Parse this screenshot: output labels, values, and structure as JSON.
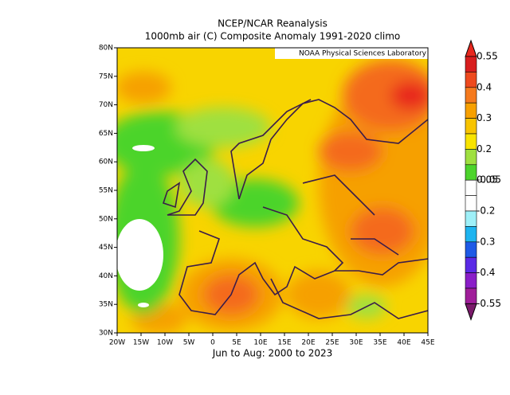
{
  "header": {
    "title": "NCEP/NCAR Reanalysis",
    "subtitle": "1000mb air (C) Composite Anomaly 1991-2020 climo",
    "attribution": "NOAA Physical Sciences Laboratory",
    "footer": "Jun to Aug: 2000 to 2023"
  },
  "map": {
    "lon_labels": [
      "20W",
      "15W",
      "10W",
      "5W",
      "0",
      "5E",
      "10E",
      "15E",
      "20E",
      "25E",
      "30E",
      "35E",
      "40E",
      "45E"
    ],
    "lat_labels": [
      "80N",
      "75N",
      "70N",
      "65N",
      "60N",
      "55N",
      "50N",
      "45N",
      "40N",
      "35N",
      "30N"
    ]
  },
  "colorbar": {
    "labels": [
      "0.55",
      "0.4",
      "0.3",
      "0.2",
      "0.05",
      "-0.05",
      "-0.2",
      "-0.3",
      "-0.4",
      "-0.55"
    ]
  }
}
